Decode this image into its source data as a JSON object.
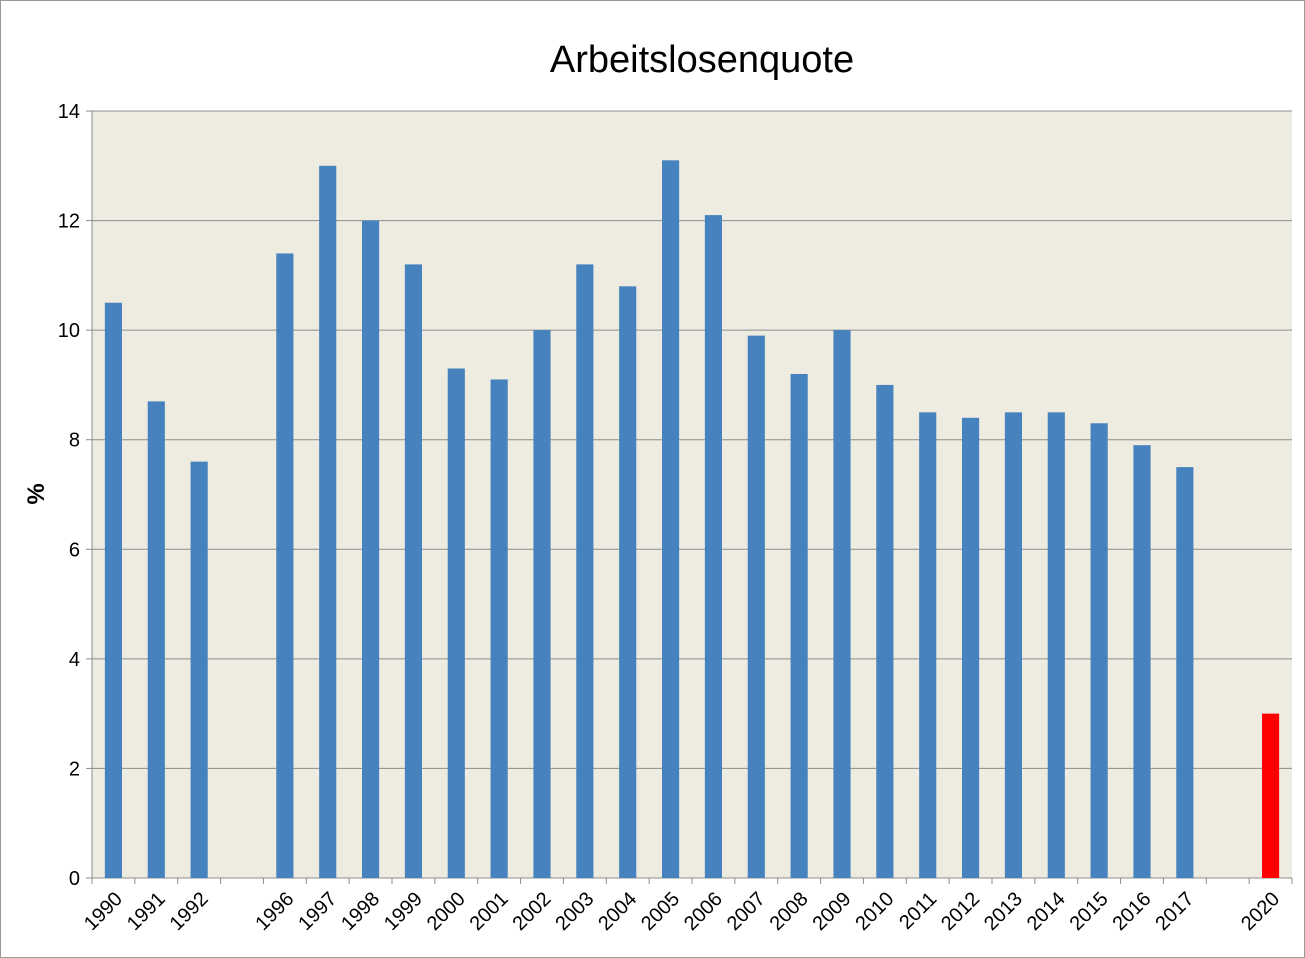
{
  "chart_data": {
    "type": "bar",
    "title": "Arbeitslosenquote",
    "ylabel": "%",
    "categories": [
      "1990",
      "1991",
      "1992",
      null,
      "1996",
      "1997",
      "1998",
      "1999",
      "2000",
      "2001",
      "2002",
      "2003",
      "2004",
      "2005",
      "2006",
      "2007",
      "2008",
      "2009",
      "2010",
      "2011",
      "2012",
      "2013",
      "2014",
      "2015",
      "2016",
      "2017",
      null,
      "2020"
    ],
    "values": [
      10.5,
      8.7,
      7.6,
      null,
      11.4,
      13.0,
      12.0,
      11.2,
      9.3,
      9.1,
      10.0,
      11.2,
      10.8,
      13.1,
      12.1,
      9.9,
      9.2,
      10.0,
      9.0,
      8.5,
      8.4,
      8.5,
      8.5,
      8.3,
      7.9,
      7.5,
      null,
      3.0
    ],
    "colors": [
      "#4682bd",
      "#4682bd",
      "#4682bd",
      null,
      "#4682bd",
      "#4682bd",
      "#4682bd",
      "#4682bd",
      "#4682bd",
      "#4682bd",
      "#4682bd",
      "#4682bd",
      "#4682bd",
      "#4682bd",
      "#4682bd",
      "#4682bd",
      "#4682bd",
      "#4682bd",
      "#4682bd",
      "#4682bd",
      "#4682bd",
      "#4682bd",
      "#4682bd",
      "#4682bd",
      "#4682bd",
      "#4682bd",
      null,
      "#ff0000"
    ],
    "ylim": [
      0,
      14
    ],
    "yticks": [
      0,
      2,
      4,
      6,
      8,
      10,
      12,
      14
    ],
    "grid": true
  }
}
